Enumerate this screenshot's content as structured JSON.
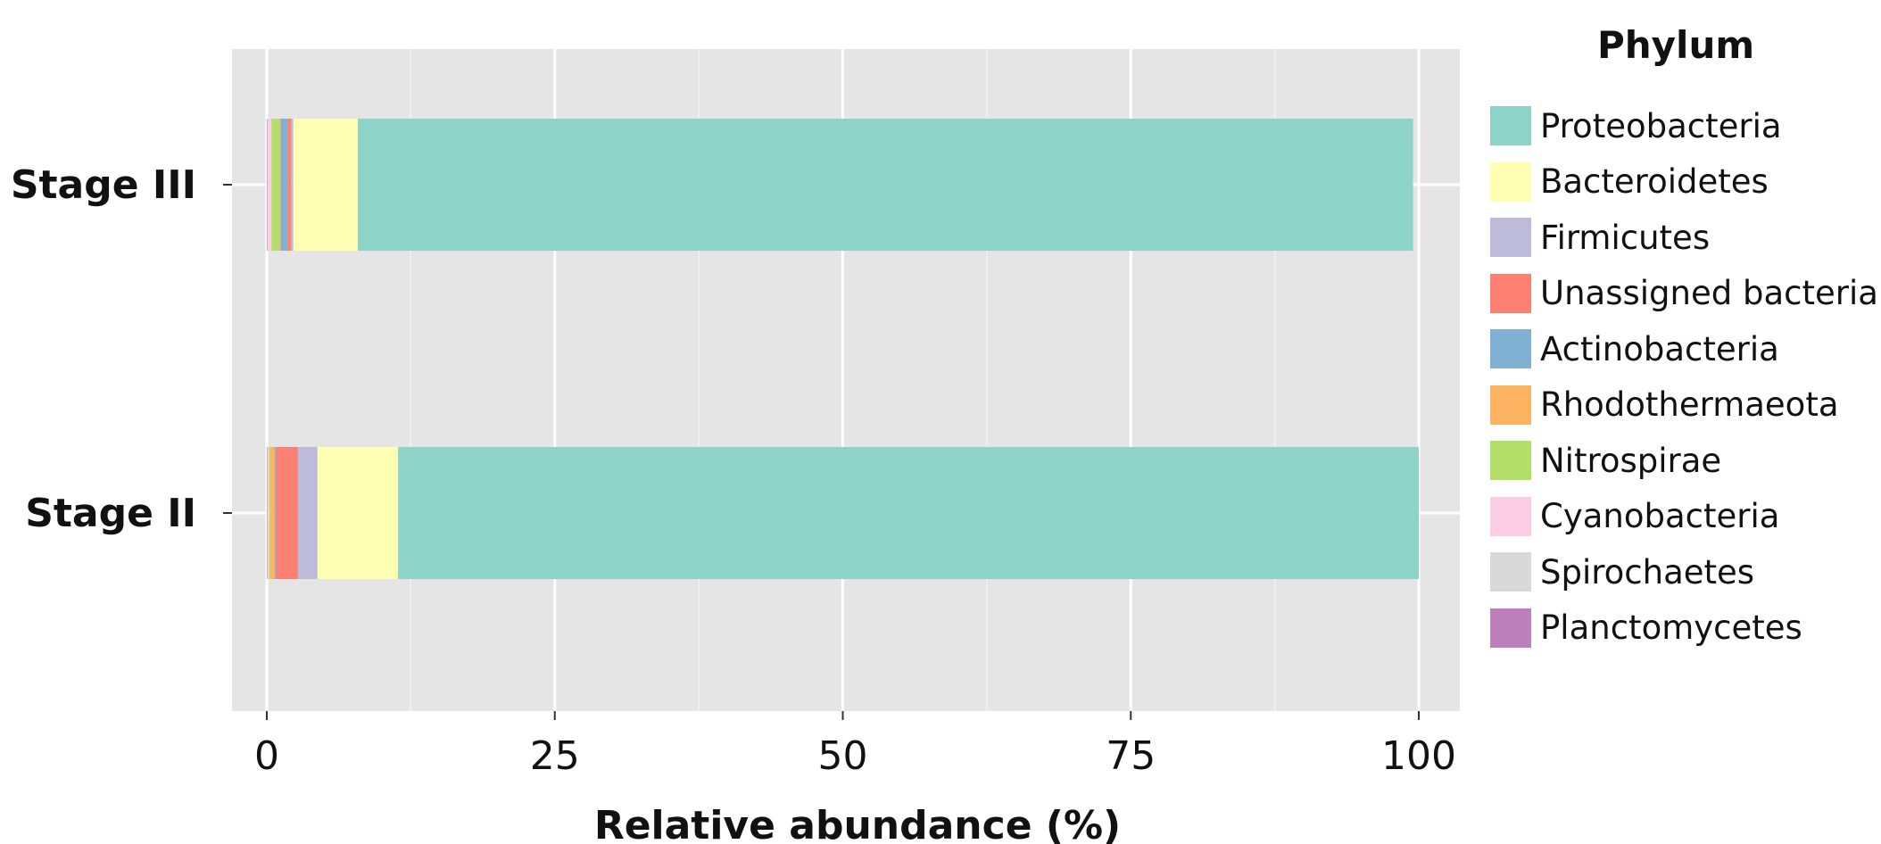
{
  "chart_data": {
    "type": "bar",
    "orientation": "horizontal",
    "stacked": true,
    "categories": [
      "Stage III",
      "Stage II"
    ],
    "xlabel": "Relative abundance (%)",
    "ylabel": "",
    "xlim": [
      0,
      100
    ],
    "xticks": [
      "0",
      "25",
      "50",
      "75",
      "100"
    ],
    "legend_title": "Phylum",
    "legend_position": "right",
    "grid": true,
    "series": [
      {
        "name": "Planctomycetes",
        "color": "#BC80BD",
        "values": [
          0.05,
          0.05
        ]
      },
      {
        "name": "Spirochaetes",
        "color": "#D9D9D9",
        "values": [
          0.05,
          0.05
        ]
      },
      {
        "name": "Cyanobacteria",
        "color": "#FCCDE5",
        "values": [
          0.3,
          0.1
        ]
      },
      {
        "name": "Nitrospirae",
        "color": "#B3DE69",
        "values": [
          0.7,
          0.1
        ]
      },
      {
        "name": "Rhodothermaeota",
        "color": "#FDB462",
        "values": [
          0.1,
          0.4
        ]
      },
      {
        "name": "Actinobacteria",
        "color": "#80B1D3",
        "values": [
          0.6,
          0.1
        ]
      },
      {
        "name": "Unassigned bacteria",
        "color": "#FB8072",
        "values": [
          0.3,
          1.9
        ]
      },
      {
        "name": "Firmicutes",
        "color": "#BEBADA",
        "values": [
          0.2,
          1.7
        ]
      },
      {
        "name": "Bacteroidetes",
        "color": "#FFFFB3",
        "values": [
          5.6,
          7.0
        ]
      },
      {
        "name": "Proteobacteria",
        "color": "#8DD3C7",
        "values": [
          91.6,
          88.6
        ]
      }
    ],
    "legend_order": [
      "Proteobacteria",
      "Bacteroidetes",
      "Firmicutes",
      "Unassigned bacteria",
      "Actinobacteria",
      "Rhodothermaeota",
      "Nitrospirae",
      "Cyanobacteria",
      "Spirochaetes",
      "Planctomycetes"
    ]
  }
}
